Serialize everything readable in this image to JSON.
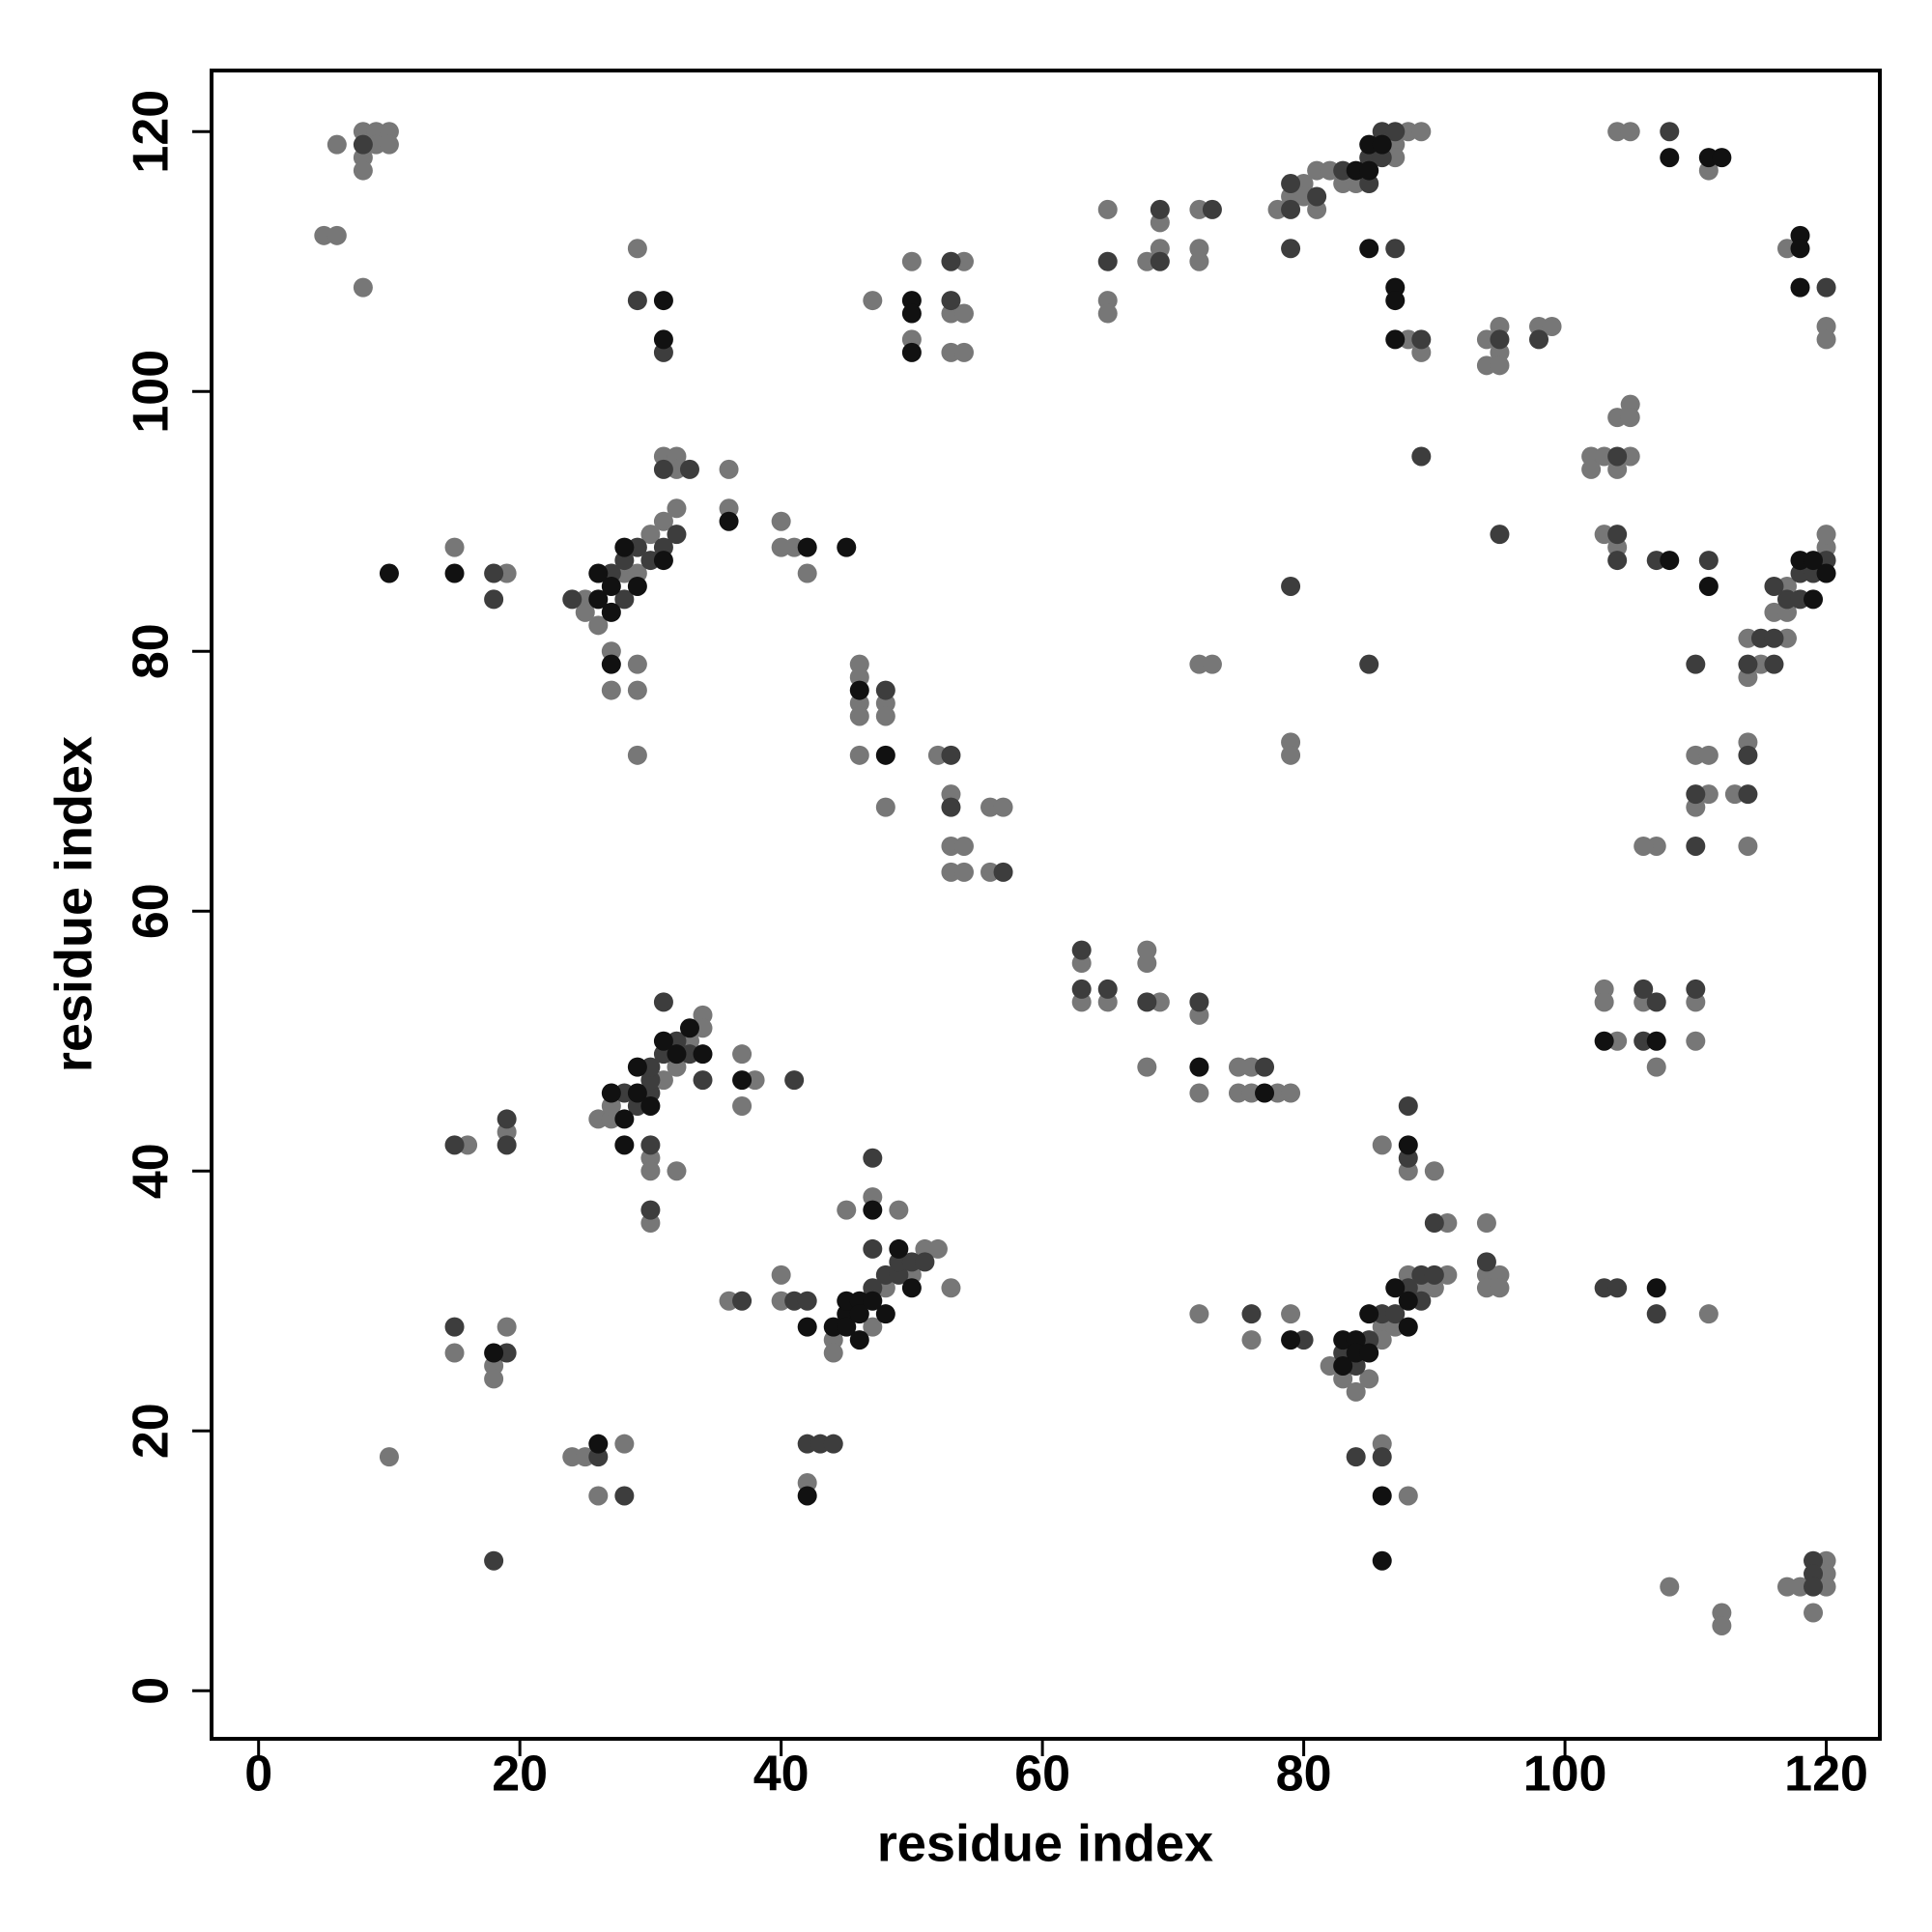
{
  "chart_data": {
    "type": "scatter",
    "xlabel": "residue index",
    "ylabel": "residue index",
    "xlim": [
      -3.6,
      124.1
    ],
    "ylim": [
      -3.7,
      124.7
    ],
    "xticks": [
      0,
      20,
      40,
      60,
      80,
      100,
      120
    ],
    "yticks": [
      0,
      20,
      40,
      60,
      80,
      100,
      120
    ],
    "grid": false,
    "series": [
      {
        "color": "#777777",
        "x": [
          5,
          6,
          6,
          8,
          8,
          8,
          9,
          9,
          10,
          10,
          8,
          15,
          19,
          25,
          25,
          26,
          28,
          29,
          30,
          31,
          32,
          27,
          27,
          29,
          29,
          29,
          31,
          32,
          32,
          36,
          36,
          40,
          40,
          41,
          42,
          29,
          46,
          46,
          46,
          46,
          48,
          48,
          46,
          48,
          52,
          53,
          53,
          54,
          53,
          54,
          56,
          57,
          56,
          47,
          50,
          50,
          54,
          53,
          54,
          53,
          54,
          65,
          65,
          65,
          68,
          69,
          69,
          72,
          72,
          72,
          78,
          79,
          80,
          80,
          81,
          81,
          82,
          83,
          84,
          87,
          87,
          88,
          89,
          88,
          89,
          94,
          95,
          95,
          94,
          95,
          98,
          99,
          104,
          105,
          111,
          117,
          120,
          120,
          102,
          102,
          103,
          104,
          104,
          105,
          105,
          105,
          103,
          104,
          114,
          114,
          115,
          116,
          117,
          117,
          117,
          120,
          120,
          110,
          111,
          111,
          110,
          114,
          113,
          107,
          106,
          114,
          72,
          73,
          79,
          79,
          63,
          63,
          65,
          68,
          68,
          69,
          72,
          72,
          68,
          75,
          76,
          75,
          76,
          78,
          79,
          103,
          103,
          104,
          106,
          107,
          110,
          110,
          26,
          27,
          27,
          31,
          32,
          33,
          34,
          34,
          30,
          30,
          32,
          30,
          37,
          38,
          37,
          16,
          19,
          15,
          18,
          18,
          19,
          10,
          24,
          25,
          28,
          26,
          36,
          40,
          40,
          44,
          44,
          47,
          48,
          50,
          51,
          52,
          53,
          45,
          47,
          49,
          42,
          82,
          83,
          84,
          85,
          86,
          86,
          87,
          88,
          89,
          90,
          91,
          86,
          88,
          90,
          91,
          94,
          94,
          94,
          95,
          95,
          86,
          88,
          72,
          76,
          79,
          111,
          108,
          112,
          112,
          117,
          118,
          119,
          120,
          120,
          120
        ],
        "y": [
          112,
          112,
          119,
          120,
          118,
          117,
          120,
          119,
          120,
          119,
          108,
          88,
          86,
          84,
          83,
          82,
          86,
          86,
          89,
          90,
          91,
          80,
          77,
          79,
          77,
          72,
          95,
          95,
          94,
          94,
          91,
          90,
          88,
          88,
          86,
          111,
          79,
          78,
          76,
          75,
          76,
          75,
          72,
          68,
          72,
          69,
          65,
          65,
          63,
          63,
          68,
          68,
          63,
          107,
          110,
          104,
          110,
          106,
          106,
          103,
          103,
          114,
          107,
          106,
          110,
          113,
          111,
          114,
          111,
          110,
          114,
          115,
          116,
          115,
          117,
          114,
          117,
          116,
          116,
          119,
          118,
          120,
          120,
          104,
          103,
          104,
          105,
          103,
          102,
          102,
          105,
          105,
          120,
          120,
          117,
          111,
          105,
          104,
          95,
          94,
          95,
          94,
          98,
          99,
          98,
          95,
          89,
          88,
          78,
          81,
          79,
          83,
          85,
          83,
          81,
          88,
          89,
          72,
          72,
          69,
          68,
          73,
          69,
          65,
          65,
          65,
          79,
          79,
          73,
          72,
          56,
          53,
          53,
          57,
          56,
          53,
          52,
          46,
          48,
          48,
          48,
          46,
          46,
          46,
          46,
          54,
          53,
          50,
          53,
          48,
          53,
          50,
          44,
          44,
          45,
          47,
          48,
          50,
          52,
          51,
          41,
          40,
          40,
          36,
          49,
          47,
          45,
          42,
          43,
          26,
          25,
          24,
          28,
          18,
          18,
          18,
          19,
          15,
          30,
          32,
          30,
          27,
          26,
          28,
          31,
          32,
          34,
          34,
          31,
          37,
          38,
          37,
          16,
          25,
          24,
          23,
          24,
          28,
          27,
          28,
          32,
          31,
          31,
          32,
          42,
          40,
          40,
          36,
          36,
          32,
          31,
          32,
          31,
          19,
          15,
          29,
          27,
          29,
          29,
          8,
          6,
          5,
          8,
          8,
          6,
          10,
          9,
          8
        ]
      },
      {
        "color": "#3d3d3d",
        "x": [
          8,
          18,
          18,
          24,
          27,
          28,
          28,
          29,
          30,
          31,
          32,
          31,
          33,
          29,
          31,
          48,
          53,
          53,
          57,
          53,
          53,
          65,
          69,
          69,
          73,
          79,
          79,
          81,
          83,
          85,
          85,
          86,
          86,
          87,
          79,
          87,
          89,
          95,
          98,
          89,
          95,
          108,
          120,
          104,
          104,
          104,
          107,
          111,
          114,
          115,
          116,
          116,
          116,
          117,
          118,
          118,
          119,
          120,
          110,
          110,
          114,
          114,
          110,
          79,
          85,
          63,
          63,
          65,
          68,
          72,
          77,
          106,
          106,
          107,
          110,
          28,
          29,
          30,
          30,
          30,
          31,
          32,
          33,
          31,
          30,
          30,
          34,
          41,
          15,
          19,
          19,
          15,
          19,
          26,
          28,
          18,
          37,
          41,
          42,
          47,
          48,
          49,
          49,
          50,
          51,
          47,
          47,
          42,
          43,
          44,
          83,
          84,
          85,
          86,
          87,
          88,
          89,
          89,
          90,
          88,
          88,
          90,
          94,
          84,
          86,
          76,
          80,
          103,
          104,
          107,
          119,
          119,
          119
        ],
        "y": [
          119,
          86,
          84,
          84,
          86,
          84,
          87,
          88,
          87,
          88,
          89,
          94,
          94,
          107,
          103,
          77,
          72,
          68,
          63,
          110,
          107,
          110,
          114,
          110,
          114,
          116,
          114,
          115,
          117,
          118,
          116,
          118,
          120,
          120,
          111,
          111,
          104,
          104,
          104,
          95,
          89,
          120,
          108,
          95,
          89,
          87,
          87,
          87,
          79,
          81,
          81,
          79,
          85,
          84,
          86,
          84,
          86,
          87,
          79,
          69,
          72,
          69,
          65,
          85,
          79,
          57,
          54,
          54,
          53,
          53,
          48,
          54,
          50,
          53,
          54,
          46,
          45,
          46,
          47,
          48,
          49,
          50,
          49,
          53,
          42,
          37,
          47,
          47,
          42,
          44,
          42,
          28,
          26,
          18,
          15,
          10,
          30,
          30,
          30,
          31,
          32,
          32,
          33,
          33,
          33,
          41,
          34,
          19,
          19,
          19,
          26,
          25,
          27,
          29,
          29,
          31,
          32,
          30,
          32,
          45,
          41,
          36,
          33,
          18,
          18,
          29,
          27,
          31,
          31,
          29,
          10,
          9,
          8
        ]
      },
      {
        "color": "#111111",
        "x": [
          10,
          15,
          26,
          26,
          27,
          27,
          28,
          29,
          31,
          27,
          36,
          42,
          45,
          31,
          31,
          46,
          48,
          50,
          50,
          50,
          84,
          85,
          85,
          86,
          85,
          87,
          87,
          87,
          108,
          111,
          112,
          118,
          118,
          118,
          108,
          111,
          118,
          119,
          119,
          120,
          72,
          77,
          103,
          107,
          27,
          28,
          29,
          29,
          30,
          31,
          32,
          33,
          34,
          28,
          37,
          18,
          26,
          42,
          44,
          45,
          45,
          45,
          46,
          46,
          46,
          47,
          48,
          49,
          50,
          47,
          42,
          83,
          83,
          84,
          84,
          85,
          85,
          87,
          88,
          88,
          88,
          86,
          86,
          79,
          107
        ],
        "y": [
          86,
          86,
          84,
          86,
          83,
          85,
          88,
          85,
          87,
          79,
          90,
          88,
          88,
          107,
          104,
          77,
          72,
          107,
          106,
          103,
          117,
          117,
          119,
          119,
          111,
          108,
          107,
          104,
          118,
          118,
          118,
          112,
          111,
          108,
          87,
          85,
          87,
          87,
          84,
          86,
          48,
          46,
          50,
          50,
          46,
          44,
          46,
          48,
          45,
          50,
          49,
          51,
          49,
          42,
          47,
          26,
          19,
          28,
          28,
          29,
          28,
          30,
          27,
          30,
          29,
          30,
          29,
          34,
          31,
          37,
          15,
          27,
          25,
          27,
          26,
          29,
          26,
          31,
          30,
          28,
          42,
          15,
          10,
          27,
          31
        ]
      }
    ]
  }
}
